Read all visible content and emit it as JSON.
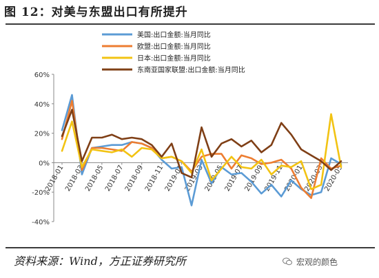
{
  "header": {
    "title": "图 12：对美与东盟出口有所提升"
  },
  "footer": {
    "source": "资料来源：Wind，方正证券研究所",
    "watermark": "宏观的颜色"
  },
  "colors": {
    "us": "#5b9bd5",
    "eu": "#ed7d31",
    "japan": "#f2c313",
    "asean": "#7f3f16"
  },
  "chart_data": {
    "type": "line",
    "title": "",
    "ylim": [
      -40,
      60
    ],
    "yticks": [
      "-40%",
      "-20%",
      "0%",
      "20%",
      "40%",
      "60%"
    ],
    "ytick_values": [
      -40,
      -20,
      0,
      20,
      40,
      60
    ],
    "xtick_labels": [
      "2018-01",
      "2018-03",
      "2018-05",
      "2018-07",
      "2018-09",
      "2018-11",
      "2019-01",
      "2019-03",
      "2019-05",
      "2019-07",
      "2019-09",
      "2019-11",
      "2020-01",
      "2020-03",
      "2020-05"
    ],
    "x": [
      "2018-01",
      "2018-02",
      "2018-03",
      "2018-04",
      "2018-05",
      "2018-06",
      "2018-07",
      "2018-08",
      "2018-09",
      "2018-10",
      "2018-11",
      "2018-12",
      "2019-01",
      "2019-02",
      "2019-03",
      "2019-04",
      "2019-05",
      "2019-06",
      "2019-07",
      "2019-08",
      "2019-09",
      "2019-10",
      "2019-11",
      "2019-12",
      "2020-01",
      "2020-02",
      "2020-03",
      "2020-04",
      "2020-05"
    ],
    "series": [
      {
        "name": "美国:出口金额:当月同比",
        "color_key": "us",
        "values": [
          22,
          46,
          -8,
          10,
          11,
          12,
          12,
          14,
          13,
          10,
          2,
          -4,
          -3,
          -29,
          2,
          -14,
          -3,
          -8,
          -7,
          -13,
          -21,
          -15,
          -23,
          -12,
          -18,
          -22,
          -20,
          3,
          -1
        ]
      },
      {
        "name": "欧盟:出口金额:当月同比",
        "color_key": "eu",
        "values": [
          16,
          42,
          -5,
          10,
          10,
          9,
          8,
          14,
          13,
          10,
          3,
          4,
          1,
          -6,
          4,
          6,
          6,
          -4,
          5,
          3,
          -1,
          0,
          2,
          -4,
          -17,
          -24,
          3,
          -4,
          -2
        ]
      },
      {
        "name": "日本:出口金额:当月同比",
        "color_key": "japan",
        "values": [
          8,
          28,
          -3,
          9,
          8,
          7,
          9,
          4,
          10,
          9,
          3,
          4,
          1,
          -7,
          9,
          -12,
          -4,
          4,
          -3,
          -4,
          2,
          -8,
          -2,
          -3,
          1,
          -18,
          -15,
          33,
          -3
        ]
      },
      {
        "name": "东南亚国家联盟:出口金额:当月同比",
        "color_key": "asean",
        "values": [
          18,
          36,
          1,
          17,
          17,
          19,
          16,
          17,
          16,
          12,
          4,
          13,
          -7,
          -10,
          24,
          4,
          13,
          16,
          11,
          15,
          7,
          12,
          27,
          19,
          9,
          5,
          1,
          -5,
          1
        ]
      }
    ]
  }
}
